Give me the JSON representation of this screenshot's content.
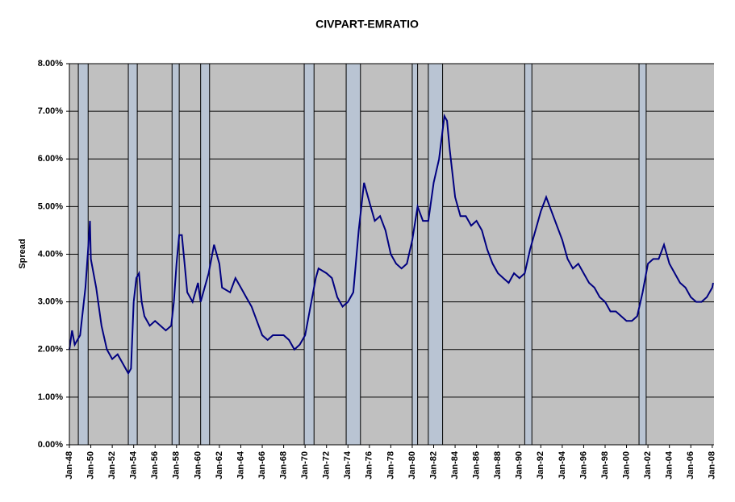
{
  "chart_data": {
    "type": "line",
    "title": "CIVPART-EMRATIO",
    "y_label": "Spread",
    "ylim": [
      0,
      8
    ],
    "yticks": [
      {
        "value": 0,
        "label": "0.00%"
      },
      {
        "value": 1,
        "label": "1.00%"
      },
      {
        "value": 2,
        "label": "2.00%"
      },
      {
        "value": 3,
        "label": "3.00%"
      },
      {
        "value": 4,
        "label": "4.00%"
      },
      {
        "value": 5,
        "label": "5.00%"
      },
      {
        "value": 6,
        "label": "6.00%"
      },
      {
        "value": 7,
        "label": "7.00%"
      },
      {
        "value": 8,
        "label": "8.00%"
      }
    ],
    "xlim": [
      "Jan-48",
      "Mar-08"
    ],
    "xticks": [
      "Jan-48",
      "Jan-50",
      "Jan-52",
      "Jan-54",
      "Jan-56",
      "Jan-58",
      "Jan-60",
      "Jan-62",
      "Jan-64",
      "Jan-66",
      "Jan-68",
      "Jan-70",
      "Jan-72",
      "Jan-74",
      "Jan-76",
      "Jan-78",
      "Jan-80",
      "Jan-82",
      "Jan-84",
      "Jan-86",
      "Jan-88",
      "Jan-90",
      "Jan-92",
      "Jan-94",
      "Jan-96",
      "Jan-98",
      "Jan-00",
      "Jan-02",
      "Jan-04",
      "Jan-06",
      "Jan-08"
    ],
    "grid": true,
    "background": "#c0c0c0",
    "recession_color": "#b9c4d3",
    "recessions": [
      [
        "Nov-48",
        "Oct-49"
      ],
      [
        "Jul-53",
        "May-54"
      ],
      [
        "Aug-57",
        "Apr-58"
      ],
      [
        "Apr-60",
        "Feb-61"
      ],
      [
        "Dec-69",
        "Nov-70"
      ],
      [
        "Nov-73",
        "Mar-75"
      ],
      [
        "Jan-80",
        "Jul-80"
      ],
      [
        "Jul-81",
        "Nov-82"
      ],
      [
        "Jul-90",
        "Mar-91"
      ],
      [
        "Mar-01",
        "Nov-01"
      ]
    ],
    "x": [
      "Jan-48",
      "Apr-48",
      "Jul-48",
      "Jan-49",
      "Jul-49",
      "Oct-49",
      "Dec-49",
      "Jan-50",
      "Jul-50",
      "Jan-51",
      "Jul-51",
      "Jan-52",
      "Jul-52",
      "Jan-53",
      "Jul-53",
      "Oct-53",
      "Jan-54",
      "Apr-54",
      "Jul-54",
      "Oct-54",
      "Jan-55",
      "Jul-55",
      "Jan-56",
      "Jul-56",
      "Jan-57",
      "Jul-57",
      "Oct-57",
      "Jan-58",
      "Apr-58",
      "Jul-58",
      "Oct-58",
      "Jan-59",
      "Jul-59",
      "Jan-60",
      "Apr-60",
      "Jan-61",
      "Jul-61",
      "Jan-62",
      "Apr-62",
      "Jan-63",
      "Jul-63",
      "Jan-64",
      "Jul-64",
      "Jan-65",
      "Jul-65",
      "Jan-66",
      "Jul-66",
      "Jan-67",
      "Jul-67",
      "Jan-68",
      "Jul-68",
      "Jan-69",
      "Jul-69",
      "Jan-70",
      "Jul-70",
      "Jan-71",
      "Apr-71",
      "Jan-72",
      "Jul-72",
      "Jan-73",
      "Jul-73",
      "Jan-74",
      "Jul-74",
      "Jan-75",
      "Jul-75",
      "Jan-76",
      "Jul-76",
      "Jan-77",
      "Jul-77",
      "Jan-78",
      "Jul-78",
      "Jan-79",
      "Jul-79",
      "Jan-80",
      "Jul-80",
      "Jan-81",
      "Jul-81",
      "Jan-82",
      "Jul-82",
      "Jan-83",
      "Apr-83",
      "Jul-83",
      "Jan-84",
      "Jul-84",
      "Jan-85",
      "Jul-85",
      "Jan-86",
      "Jul-86",
      "Jan-87",
      "Jul-87",
      "Jan-88",
      "Jul-88",
      "Jan-89",
      "Jul-89",
      "Jan-90",
      "Jul-90",
      "Jan-91",
      "Jul-91",
      "Jan-92",
      "Jul-92",
      "Jan-93",
      "Jul-93",
      "Jan-94",
      "Jul-94",
      "Jan-95",
      "Jul-95",
      "Jan-96",
      "Jul-96",
      "Jan-97",
      "Jul-97",
      "Jan-98",
      "Jul-98",
      "Jan-99",
      "Jul-99",
      "Jan-00",
      "Jul-00",
      "Jan-01",
      "Jul-01",
      "Jan-02",
      "Jul-02",
      "Jan-03",
      "Jul-03",
      "Jan-04",
      "Jul-04",
      "Jan-05",
      "Jul-05",
      "Jan-06",
      "Jul-06",
      "Jan-07",
      "Jul-07",
      "Jan-08",
      "Feb-08"
    ],
    "series": [
      {
        "color": "#000080",
        "values": [
          2.0,
          2.4,
          2.1,
          2.3,
          3.3,
          4.1,
          4.7,
          3.9,
          3.3,
          2.5,
          2.0,
          1.8,
          1.9,
          1.7,
          1.5,
          1.6,
          3.0,
          3.5,
          3.6,
          3.0,
          2.7,
          2.5,
          2.6,
          2.5,
          2.4,
          2.5,
          3.0,
          3.8,
          4.4,
          4.4,
          3.8,
          3.2,
          3.0,
          3.4,
          3.0,
          3.6,
          4.2,
          3.8,
          3.3,
          3.2,
          3.5,
          3.3,
          3.1,
          2.9,
          2.6,
          2.3,
          2.2,
          2.3,
          2.3,
          2.3,
          2.2,
          2.0,
          2.1,
          2.3,
          2.9,
          3.5,
          3.7,
          3.6,
          3.5,
          3.1,
          2.9,
          3.0,
          3.2,
          4.5,
          5.5,
          5.1,
          4.7,
          4.8,
          4.5,
          4.0,
          3.8,
          3.7,
          3.8,
          4.3,
          5.0,
          4.7,
          4.7,
          5.5,
          6.0,
          6.9,
          6.8,
          6.2,
          5.2,
          4.8,
          4.8,
          4.6,
          4.7,
          4.5,
          4.1,
          3.8,
          3.6,
          3.5,
          3.4,
          3.6,
          3.5,
          3.6,
          4.1,
          4.5,
          4.9,
          5.2,
          4.9,
          4.6,
          4.3,
          3.9,
          3.7,
          3.8,
          3.6,
          3.4,
          3.3,
          3.1,
          3.0,
          2.8,
          2.8,
          2.7,
          2.6,
          2.6,
          2.7,
          3.2,
          3.8,
          3.9,
          3.9,
          4.2,
          3.8,
          3.6,
          3.4,
          3.3,
          3.1,
          3.0,
          3.0,
          3.1,
          3.3,
          3.4
        ]
      }
    ]
  }
}
